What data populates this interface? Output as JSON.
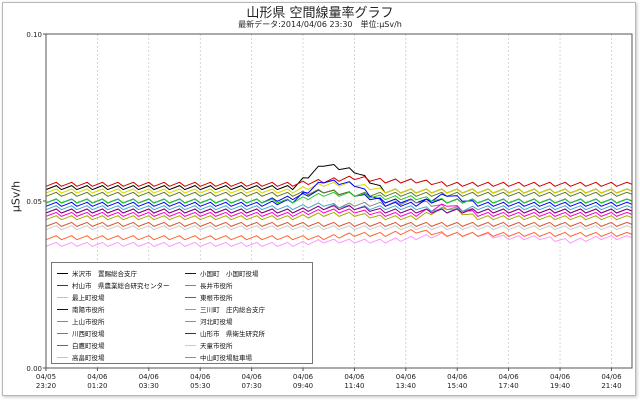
{
  "chart_data": {
    "type": "line",
    "title": "山形県 空間線量率グラフ",
    "subtitle": "最新データ:2014/04/06 23:30　単位:μSv/h",
    "ylabel": "μSv/h",
    "xlabel": "",
    "ylim": [
      0,
      0.1
    ],
    "yticks": [
      "0.00",
      "0.05",
      "0.10"
    ],
    "xticks": [
      {
        "date": "04/05",
        "time": "23:20"
      },
      {
        "date": "04/06",
        "time": "01:20"
      },
      {
        "date": "04/06",
        "time": "03:30"
      },
      {
        "date": "04/06",
        "time": "05:30"
      },
      {
        "date": "04/06",
        "time": "07:30"
      },
      {
        "date": "04/06",
        "time": "09:40"
      },
      {
        "date": "04/06",
        "time": "11:40"
      },
      {
        "date": "04/06",
        "time": "13:40"
      },
      {
        "date": "04/06",
        "time": "15:40"
      },
      {
        "date": "04/06",
        "time": "17:40"
      },
      {
        "date": "04/06",
        "time": "19:40"
      },
      {
        "date": "04/06",
        "time": "21:40"
      }
    ],
    "grid": true,
    "legend_position": "bottom-left",
    "series": [
      {
        "name": "米沢市　置賜総合支庁",
        "color": "#000000",
        "values": [
          0.054,
          0.054,
          0.054,
          0.054,
          0.054,
          0.054,
          0.054,
          0.054,
          0.054,
          0.061,
          0.059,
          0.053,
          0.053,
          0.053,
          0.053,
          0.053,
          0.053,
          0.053,
          0.053,
          0.053
        ]
      },
      {
        "name": "村山市　県農業総合研究センター",
        "color": "#cc0000",
        "values": [
          0.055,
          0.055,
          0.055,
          0.055,
          0.055,
          0.055,
          0.055,
          0.055,
          0.055,
          0.056,
          0.057,
          0.056,
          0.056,
          0.055,
          0.055,
          0.055,
          0.055,
          0.055,
          0.055,
          0.055
        ]
      },
      {
        "name": "最上町役場",
        "color": "#d8d800",
        "values": [
          0.053,
          0.053,
          0.053,
          0.053,
          0.053,
          0.053,
          0.053,
          0.053,
          0.053,
          0.055,
          0.055,
          0.053,
          0.053,
          0.053,
          0.053,
          0.053,
          0.053,
          0.053,
          0.053,
          0.053
        ]
      },
      {
        "name": "南陽市役所",
        "color": "#0000cc",
        "values": [
          0.05,
          0.05,
          0.05,
          0.05,
          0.05,
          0.05,
          0.05,
          0.05,
          0.051,
          0.053,
          0.052,
          0.05,
          0.05,
          0.05,
          0.05,
          0.05,
          0.05,
          0.05,
          0.05,
          0.05
        ]
      },
      {
        "name": "上山市役所",
        "color": "#888888",
        "values": [
          0.047,
          0.047,
          0.047,
          0.047,
          0.047,
          0.047,
          0.047,
          0.047,
          0.047,
          0.048,
          0.049,
          0.049,
          0.05,
          0.048,
          0.047,
          0.047,
          0.047,
          0.047,
          0.047,
          0.047
        ]
      },
      {
        "name": "川西町役場",
        "color": "#dd5533",
        "values": [
          0.043,
          0.043,
          0.043,
          0.043,
          0.043,
          0.043,
          0.043,
          0.043,
          0.043,
          0.043,
          0.043,
          0.043,
          0.043,
          0.043,
          0.043,
          0.043,
          0.043,
          0.043,
          0.043,
          0.043
        ]
      },
      {
        "name": "白鷹町役場",
        "color": "#667722",
        "values": [
          0.052,
          0.052,
          0.052,
          0.052,
          0.052,
          0.052,
          0.052,
          0.052,
          0.052,
          0.053,
          0.052,
          0.052,
          0.052,
          0.052,
          0.052,
          0.052,
          0.052,
          0.052,
          0.052,
          0.052
        ]
      },
      {
        "name": "高畠町役場",
        "color": "#ff99ff",
        "values": [
          0.037,
          0.037,
          0.037,
          0.037,
          0.037,
          0.037,
          0.037,
          0.037,
          0.037,
          0.038,
          0.038,
          0.038,
          0.039,
          0.04,
          0.04,
          0.039,
          0.039,
          0.038,
          0.039,
          0.039
        ]
      },
      {
        "name": "小国町　小国町役場",
        "color": "#0000ff",
        "values": [
          0.049,
          0.049,
          0.049,
          0.049,
          0.049,
          0.049,
          0.049,
          0.049,
          0.05,
          0.056,
          0.055,
          0.049,
          0.049,
          0.052,
          0.049,
          0.049,
          0.049,
          0.049,
          0.049,
          0.049
        ]
      },
      {
        "name": "長井市役所",
        "color": "#22cc22",
        "values": [
          0.05,
          0.05,
          0.05,
          0.05,
          0.05,
          0.05,
          0.05,
          0.05,
          0.05,
          0.052,
          0.052,
          0.051,
          0.051,
          0.05,
          0.05,
          0.05,
          0.05,
          0.05,
          0.05,
          0.05
        ]
      },
      {
        "name": "東根市役所",
        "color": "#ff00cc",
        "values": [
          0.046,
          0.046,
          0.046,
          0.046,
          0.046,
          0.046,
          0.046,
          0.046,
          0.046,
          0.047,
          0.047,
          0.046,
          0.046,
          0.049,
          0.046,
          0.046,
          0.046,
          0.046,
          0.046,
          0.046
        ]
      },
      {
        "name": "三川町　庄内総合支庁",
        "color": "#aaaa00",
        "values": [
          0.045,
          0.045,
          0.045,
          0.045,
          0.045,
          0.045,
          0.045,
          0.045,
          0.045,
          0.046,
          0.046,
          0.045,
          0.045,
          0.048,
          0.045,
          0.045,
          0.045,
          0.045,
          0.045,
          0.045
        ]
      },
      {
        "name": "河北町役場",
        "color": "#44aacc",
        "values": [
          0.048,
          0.048,
          0.048,
          0.048,
          0.048,
          0.048,
          0.048,
          0.048,
          0.048,
          0.049,
          0.048,
          0.048,
          0.048,
          0.047,
          0.048,
          0.048,
          0.048,
          0.048,
          0.048,
          0.048
        ]
      },
      {
        "name": "山形市　県衛生研究所",
        "color": "#880088",
        "values": [
          0.047,
          0.047,
          0.047,
          0.047,
          0.047,
          0.047,
          0.047,
          0.047,
          0.047,
          0.048,
          0.048,
          0.047,
          0.047,
          0.047,
          0.047,
          0.047,
          0.047,
          0.047,
          0.047,
          0.047
        ]
      },
      {
        "name": "天童市役所",
        "color": "#cccccc",
        "values": [
          0.042,
          0.042,
          0.042,
          0.042,
          0.042,
          0.042,
          0.042,
          0.042,
          0.042,
          0.042,
          0.042,
          0.042,
          0.042,
          0.042,
          0.042,
          0.042,
          0.042,
          0.042,
          0.042,
          0.042
        ]
      },
      {
        "name": "中山町役場駐車場",
        "color": "#ff6633",
        "values": [
          0.039,
          0.039,
          0.039,
          0.039,
          0.039,
          0.039,
          0.039,
          0.039,
          0.039,
          0.039,
          0.04,
          0.04,
          0.041,
          0.04,
          0.04,
          0.04,
          0.04,
          0.04,
          0.04,
          0.04
        ]
      }
    ]
  }
}
